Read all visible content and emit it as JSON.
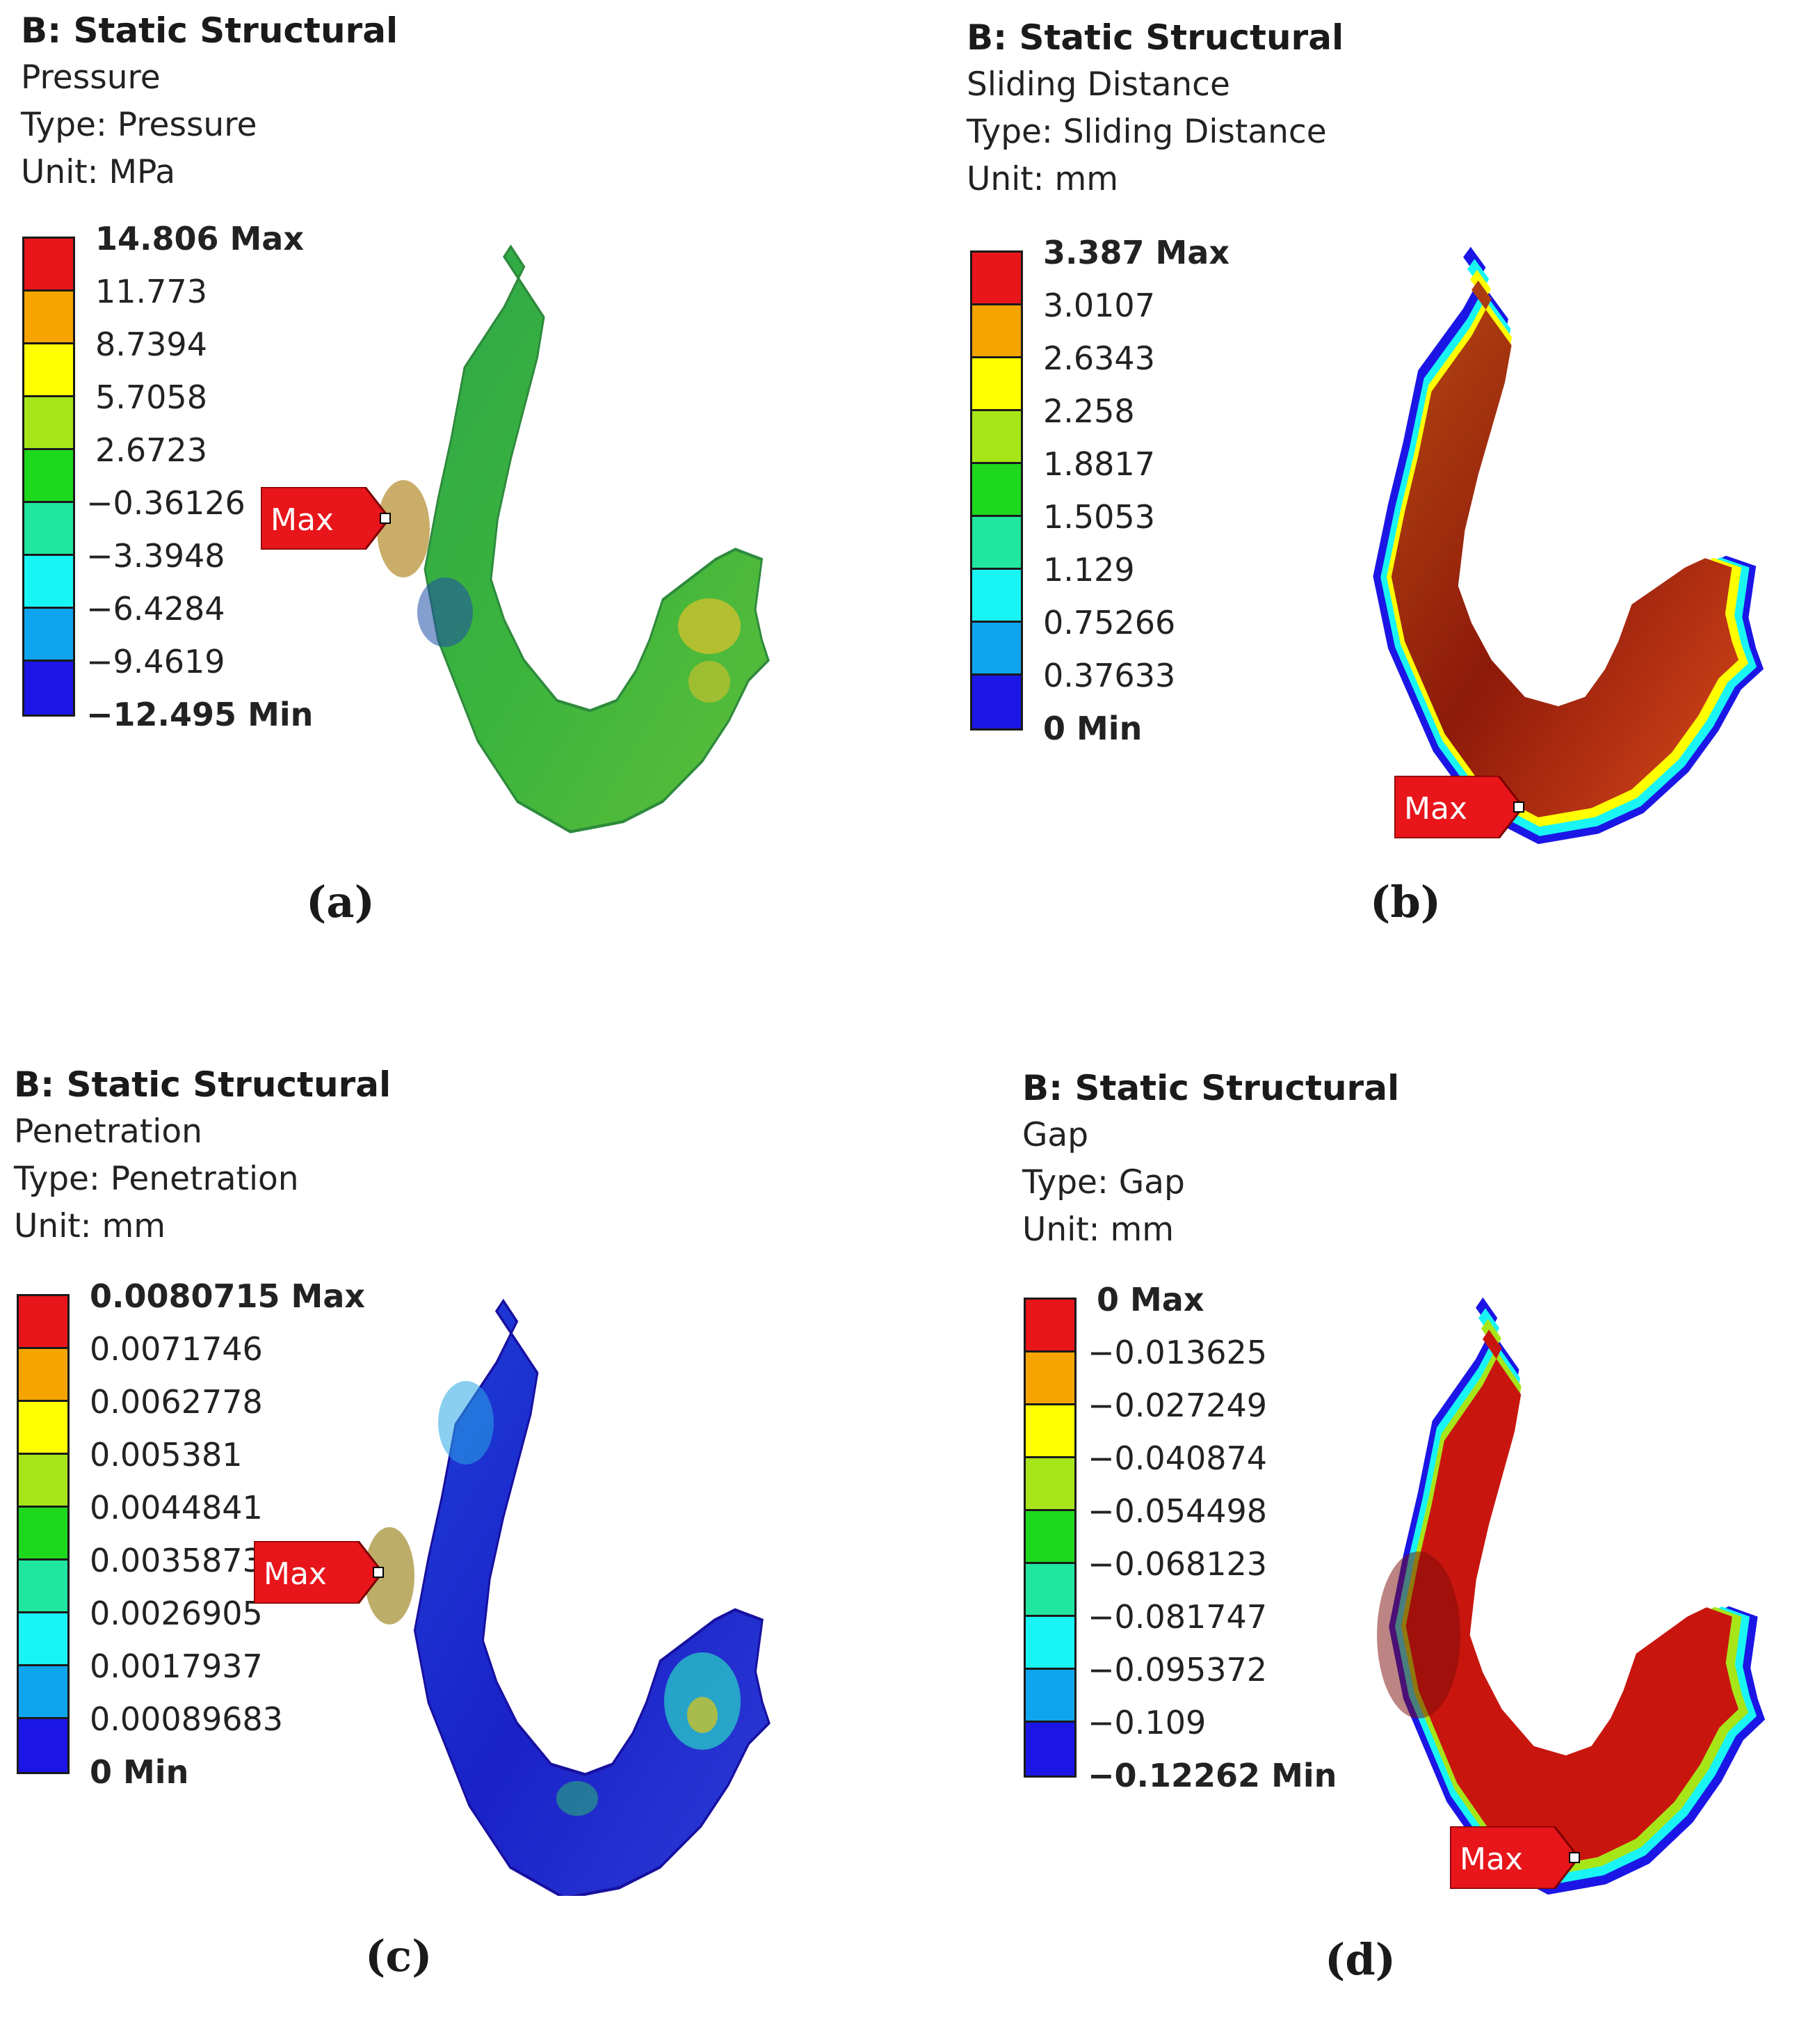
{
  "panels": [
    {
      "id": "a",
      "caption": "(a)",
      "title": "B: Static Structural",
      "result": "Pressure",
      "type_line": "Type: Pressure",
      "unit_line": "Unit: MPa",
      "legend": [
        "14.806 Max",
        "11.773",
        "8.7394",
        "5.7058",
        "2.6723",
        "−0.36126",
        "−3.3948",
        "−6.4284",
        "−9.4619",
        "−12.495 Min"
      ],
      "marker": "Max"
    },
    {
      "id": "b",
      "caption": "(b)",
      "title": "B: Static Structural",
      "result": "Sliding Distance",
      "type_line": "Type: Sliding Distance",
      "unit_line": "Unit: mm",
      "legend": [
        "3.387 Max",
        "3.0107",
        "2.6343",
        "2.258",
        "1.8817",
        "1.5053",
        "1.129",
        "0.75266",
        "0.37633",
        "0 Min"
      ],
      "marker": "Max"
    },
    {
      "id": "c",
      "caption": "(c)",
      "title": "B: Static Structural",
      "result": "Penetration",
      "type_line": "Type: Penetration",
      "unit_line": "Unit: mm",
      "legend": [
        "0.0080715 Max",
        "0.0071746",
        "0.0062778",
        "0.005381",
        "0.0044841",
        "0.0035873",
        "0.0026905",
        "0.0017937",
        "0.00089683",
        "0 Min"
      ],
      "marker": "Max"
    },
    {
      "id": "d",
      "caption": "(d)",
      "title": "B: Static Structural",
      "result": "Gap",
      "type_line": "Type: Gap",
      "unit_line": "Unit: mm",
      "legend": [
        "0 Max",
        "−0.013625",
        "−0.027249",
        "−0.040874",
        "−0.054498",
        "−0.068123",
        "−0.081747",
        "−0.095372",
        "−0.109",
        "−0.12262 Min"
      ],
      "marker": "Max"
    }
  ],
  "colors": {
    "legend_bands": [
      "#e8151b",
      "#f5a400",
      "#ffff00",
      "#a6e619",
      "#1ed81e",
      "#21e6a0",
      "#19f5f5",
      "#0fa5ee",
      "#1b16e6"
    ],
    "marker_fill": "#e8151b"
  }
}
